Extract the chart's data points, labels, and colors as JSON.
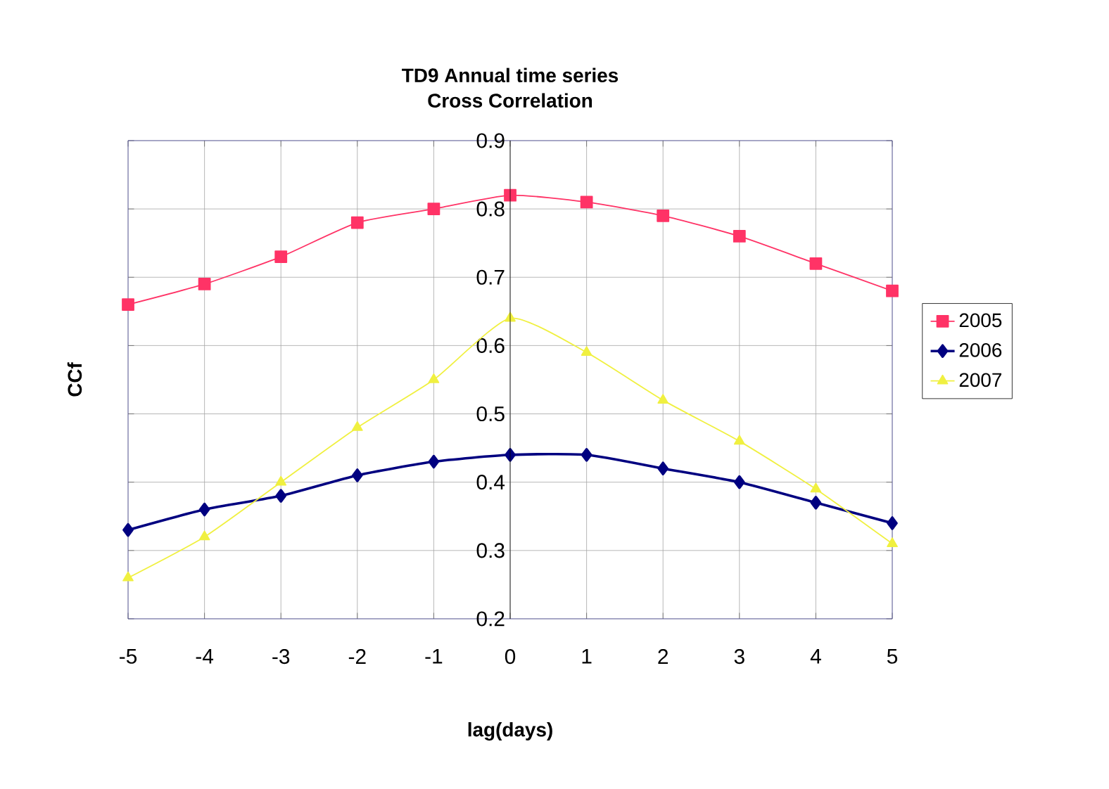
{
  "chart_data": {
    "type": "line",
    "title": "TD9 Annual time series",
    "subtitle": "Cross Correlation",
    "xlabel": "lag(days)",
    "ylabel": "CCf",
    "x": [
      -5,
      -4,
      -3,
      -2,
      -1,
      0,
      1,
      2,
      3,
      4,
      5
    ],
    "series": [
      {
        "name": "2005",
        "color": "#ff3366",
        "marker": "square",
        "values": [
          0.66,
          0.69,
          0.73,
          0.78,
          0.8,
          0.82,
          0.81,
          0.79,
          0.76,
          0.72,
          0.68
        ]
      },
      {
        "name": "2006",
        "color": "#000080",
        "marker": "diamond",
        "values": [
          0.33,
          0.36,
          0.38,
          0.41,
          0.43,
          0.44,
          0.44,
          0.42,
          0.4,
          0.37,
          0.34
        ]
      },
      {
        "name": "2007",
        "color": "#f0f040",
        "marker": "triangle",
        "values": [
          0.26,
          0.32,
          0.4,
          0.48,
          0.55,
          0.64,
          0.59,
          0.52,
          0.46,
          0.39,
          0.31
        ]
      }
    ],
    "xlim": [
      -5,
      5
    ],
    "ylim": [
      0.2,
      0.9
    ],
    "xticks": [
      -5,
      -4,
      -3,
      -2,
      -1,
      0,
      1,
      2,
      3,
      4,
      5
    ],
    "yticks": [
      0.2,
      0.3,
      0.4,
      0.5,
      0.6,
      0.7,
      0.8,
      0.9
    ],
    "grid": true,
    "legend": "right",
    "line_style": "solid"
  }
}
